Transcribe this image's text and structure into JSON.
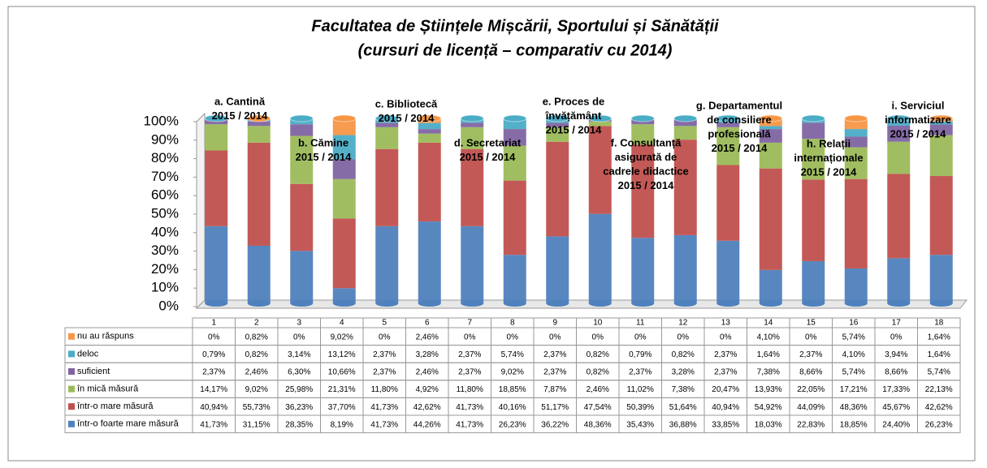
{
  "chart_data": {
    "type": "stacked-cylinder",
    "title": "Facultatea de Științele Mișcării, Sportului și Sănătății",
    "subtitle": "(cursuri de licență – comparativ cu 2014)",
    "categories": [
      "1",
      "2",
      "3",
      "4",
      "5",
      "6",
      "7",
      "8",
      "9",
      "10",
      "11",
      "12",
      "13",
      "14",
      "15",
      "16",
      "17",
      "18"
    ],
    "ylim": [
      0,
      100
    ],
    "yticks": [
      {
        "value": 0,
        "label": "0%"
      },
      {
        "value": 10,
        "label": "10%"
      },
      {
        "value": 20,
        "label": "20%"
      },
      {
        "value": 30,
        "label": "30%"
      },
      {
        "value": 40,
        "label": "40%"
      },
      {
        "value": 50,
        "label": "50%"
      },
      {
        "value": 60,
        "label": "60%"
      },
      {
        "value": 70,
        "label": "70%"
      },
      {
        "value": 80,
        "label": "80%"
      },
      {
        "value": 90,
        "label": "90%"
      },
      {
        "value": 100,
        "label": "100%"
      }
    ],
    "series": [
      {
        "name": "nu au răspuns",
        "color": "#f79646",
        "values": [
          0,
          0.82,
          0,
          9.02,
          0,
          2.46,
          0,
          0,
          0,
          0,
          0,
          0,
          0,
          4.1,
          0,
          5.74,
          0,
          1.64
        ],
        "value_labels": [
          "0%",
          "0,82%",
          "0%",
          "9,02%",
          "0%",
          "2,46%",
          "0%",
          "0%",
          "0%",
          "0%",
          "0%",
          "0%",
          "0%",
          "4,10%",
          "0%",
          "5,74%",
          "0%",
          "1,64%"
        ]
      },
      {
        "name": "deloc",
        "color": "#4bacc6",
        "values": [
          0.79,
          0.82,
          3.14,
          13.12,
          2.37,
          3.28,
          2.37,
          5.74,
          2.37,
          0.82,
          0.79,
          0.82,
          2.37,
          1.64,
          2.37,
          4.1,
          3.94,
          1.64
        ],
        "value_labels": [
          "0,79%",
          "0,82%",
          "3,14%",
          "13,12%",
          "2,37%",
          "3,28%",
          "2,37%",
          "5,74%",
          "2,37%",
          "0,82%",
          "0,79%",
          "0,82%",
          "2,37%",
          "1,64%",
          "2,37%",
          "4,10%",
          "3,94%",
          "1,64%"
        ]
      },
      {
        "name": "suficient",
        "color": "#8064a2",
        "values": [
          2.37,
          2.46,
          6.3,
          10.66,
          2.37,
          2.46,
          2.37,
          9.02,
          2.37,
          0.82,
          2.37,
          3.28,
          2.37,
          7.38,
          8.66,
          5.74,
          8.66,
          5.74
        ],
        "value_labels": [
          "2,37%",
          "2,46%",
          "6,30%",
          "10,66%",
          "2,37%",
          "2,46%",
          "2,37%",
          "9,02%",
          "2,37%",
          "0,82%",
          "2,37%",
          "3,28%",
          "2,37%",
          "7,38%",
          "8,66%",
          "5,74%",
          "8,66%",
          "5,74%"
        ]
      },
      {
        "name": "în mică măsură",
        "color": "#9bbb59",
        "values": [
          14.17,
          9.02,
          25.98,
          21.31,
          11.8,
          4.92,
          11.8,
          18.85,
          7.87,
          2.46,
          11.02,
          7.38,
          20.47,
          13.93,
          22.05,
          17.21,
          17.33,
          22.13
        ],
        "value_labels": [
          "14,17%",
          "9,02%",
          "25,98%",
          "21,31%",
          "11,80%",
          "4,92%",
          "11,80%",
          "18,85%",
          "7,87%",
          "2,46%",
          "11,02%",
          "7,38%",
          "20,47%",
          "13,93%",
          "22,05%",
          "17,21%",
          "17,33%",
          "22,13%"
        ]
      },
      {
        "name": "într-o mare măsură",
        "color": "#c0504d",
        "values": [
          40.94,
          55.73,
          36.23,
          37.7,
          41.73,
          42.62,
          41.73,
          40.16,
          51.17,
          47.54,
          50.39,
          51.64,
          40.94,
          54.92,
          44.09,
          48.36,
          45.67,
          42.62
        ],
        "value_labels": [
          "40,94%",
          "55,73%",
          "36,23%",
          "37,70%",
          "41,73%",
          "42,62%",
          "41,73%",
          "40,16%",
          "51,17%",
          "47,54%",
          "50,39%",
          "51,64%",
          "40,94%",
          "54,92%",
          "44,09%",
          "48,36%",
          "45,67%",
          "42,62%"
        ]
      },
      {
        "name": "într-o foarte mare măsură",
        "color": "#4f81bd",
        "values": [
          41.73,
          31.15,
          28.35,
          8.19,
          41.73,
          44.26,
          41.73,
          26.23,
          36.22,
          48.36,
          35.43,
          36.88,
          33.85,
          18.03,
          22.83,
          18.85,
          24.4,
          26.23
        ],
        "value_labels": [
          "41,73%",
          "31,15%",
          "28,35%",
          "8,19%",
          "41,73%",
          "44,26%",
          "41,73%",
          "26,23%",
          "36,22%",
          "48,36%",
          "35,43%",
          "36,88%",
          "33,85%",
          "18,03%",
          "22,83%",
          "18,85%",
          "24,40%",
          "26,23%"
        ]
      }
    ],
    "annotations": [
      [
        "a. Cantină",
        "2015 / 2014"
      ],
      [
        "b. Cămine",
        "2015 / 2014"
      ],
      [
        "c. Bibliotecă",
        "2015 / 2014"
      ],
      [
        "d. Secretariat",
        "2015 / 2014"
      ],
      [
        "e. Proces de",
        "învățământ",
        "2015 / 2014"
      ],
      [
        "f. Consultanță",
        "asigurată de",
        "cadrele didactice",
        "2015 / 2014"
      ],
      [
        "g. Departamentul",
        "de consiliere",
        "profesională",
        "2015 / 2014"
      ],
      [
        "h. Relații",
        "internaționale",
        "2015 / 2014"
      ],
      [
        "i. Serviciul",
        "informatizare",
        "2015 / 2014"
      ]
    ]
  }
}
